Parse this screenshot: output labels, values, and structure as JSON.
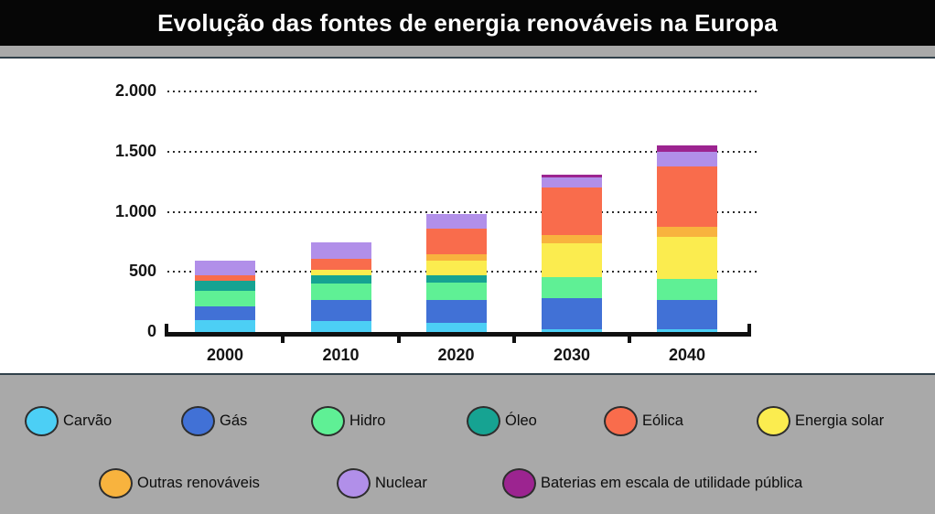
{
  "header": {
    "title": "Evolução das fontes de energia renováveis na Europa",
    "background_color": "#060606",
    "text_color": "#ffffff"
  },
  "page": {
    "background_color": "#A9A9A9",
    "panel_background_color": "#ffffff",
    "panel_border_color": "#31414B"
  },
  "chart_data": {
    "type": "bar",
    "stacked": true,
    "title": "Evolução das fontes de energia renováveis na Europa",
    "xlabel": "",
    "ylabel": "",
    "categories": [
      "2000",
      "2010",
      "2020",
      "2030",
      "2040"
    ],
    "series": [
      {
        "name": "Carvão",
        "color": "#4CCFF5",
        "values": [
          100,
          90,
          75,
          25,
          25
        ]
      },
      {
        "name": "Gás",
        "color": "#4171D6",
        "values": [
          110,
          175,
          190,
          255,
          245
        ]
      },
      {
        "name": "Hidro",
        "color": "#5FF095",
        "values": [
          130,
          135,
          150,
          175,
          170
        ]
      },
      {
        "name": "Óleo",
        "color": "#16A392",
        "values": [
          90,
          75,
          55,
          0,
          0
        ]
      },
      {
        "name": "Energia solar",
        "color": "#FBEC4F",
        "values": [
          0,
          40,
          125,
          285,
          355
        ]
      },
      {
        "name": "Outras renováveis",
        "color": "#F8B33E",
        "values": [
          0,
          0,
          55,
          70,
          80
        ]
      },
      {
        "name": "Eólica",
        "color": "#F96C4C",
        "values": [
          40,
          95,
          210,
          395,
          505
        ]
      },
      {
        "name": "Nuclear",
        "color": "#B18FE9",
        "values": [
          125,
          135,
          120,
          85,
          120
        ]
      },
      {
        "name": "Baterias em escala de utilidade pública",
        "color": "#9C2490",
        "values": [
          0,
          0,
          0,
          20,
          55
        ]
      }
    ],
    "totals_by_category": [
      595,
      745,
      980,
      1310,
      1555
    ],
    "y_ticks": [
      {
        "value": 2000,
        "label": "2.000"
      },
      {
        "value": 1500,
        "label": "1.500"
      },
      {
        "value": 1000,
        "label": "1.000"
      },
      {
        "value": 500,
        "label": "500"
      },
      {
        "value": 0,
        "label": "0"
      }
    ],
    "ylim": [
      0,
      2000
    ],
    "grid": "horizontal dotted",
    "legend_position": "bottom"
  },
  "legend": {
    "rows": [
      [
        {
          "label": "Carvão",
          "color": "#4CCFF5"
        },
        {
          "label": "Gás",
          "color": "#4171D6"
        },
        {
          "label": "Hidro",
          "color": "#5FF095"
        },
        {
          "label": "Óleo",
          "color": "#16A392"
        },
        {
          "label": "Eólica",
          "color": "#F96C4C"
        },
        {
          "label": "Energia solar",
          "color": "#FBEC4F"
        }
      ],
      [
        {
          "label": "Outras renováveis",
          "color": "#F8B33E"
        },
        {
          "label": "Nuclear",
          "color": "#B18FE9"
        },
        {
          "label": "Baterias em escala de utilidade pública",
          "color": "#9C2490"
        }
      ]
    ]
  }
}
